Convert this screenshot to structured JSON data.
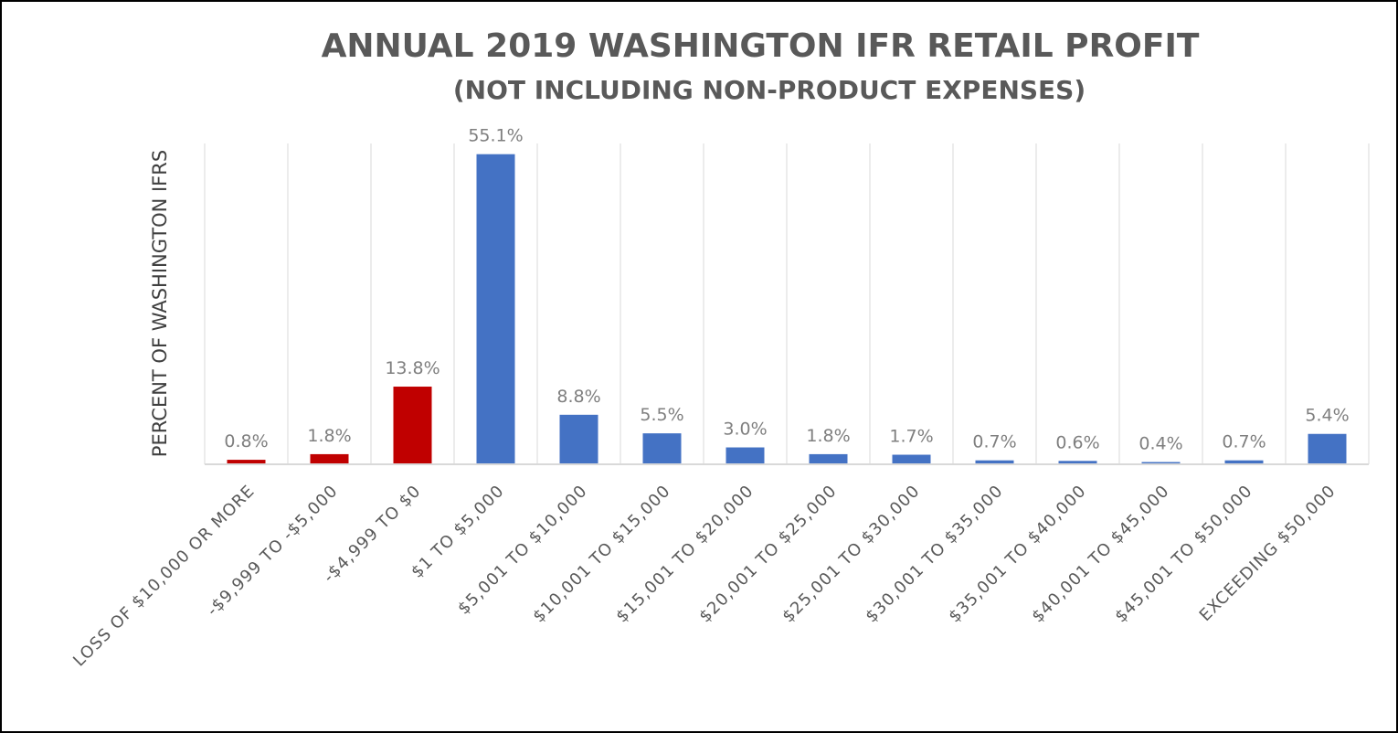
{
  "chart_data": {
    "type": "bar",
    "title": "ANNUAL 2019 WASHINGTON IFR RETAIL PROFIT",
    "subtitle": "(NOT INCLUDING NON-PRODUCT EXPENSES)",
    "xlabel": "",
    "ylabel": "PERCENT OF WASHINGTON IFRS",
    "ylim": [
      0,
      57
    ],
    "grid": "vertical",
    "categories": [
      "LOSS OF $10,000 OR MORE",
      "-$9,999 TO -$5,000",
      "-$4,999 TO $0",
      "$1 TO $5,000",
      "$5,001 TO $10,000",
      "$10,001 TO $15,000",
      "$15,001 TO $20,000",
      "$20,001 TO $25,000",
      "$25,001 TO $30,000",
      "$30,001 TO $35,000",
      "$35,001 TO $40,000",
      "$40,001 TO $45,000",
      "$45,001 TO $50,000",
      "EXCEEDING $50,000"
    ],
    "values": [
      0.8,
      1.8,
      13.8,
      55.1,
      8.8,
      5.5,
      3.0,
      1.8,
      1.7,
      0.7,
      0.6,
      0.4,
      0.7,
      5.4
    ],
    "value_labels": [
      "0.8%",
      "1.8%",
      "13.8%",
      "55.1%",
      "8.8%",
      "5.5%",
      "3.0%",
      "1.8%",
      "1.7%",
      "0.7%",
      "0.6%",
      "0.4%",
      "0.7%",
      "5.4%"
    ],
    "colors": [
      "#c00000",
      "#c00000",
      "#c00000",
      "#4472c4",
      "#4472c4",
      "#4472c4",
      "#4472c4",
      "#4472c4",
      "#4472c4",
      "#4472c4",
      "#4472c4",
      "#4472c4",
      "#4472c4",
      "#4472c4"
    ]
  },
  "colors": {
    "loss": "#c00000",
    "profit": "#4472c4",
    "grid": "#d9d9d9",
    "axis": "#d9d9d9"
  }
}
